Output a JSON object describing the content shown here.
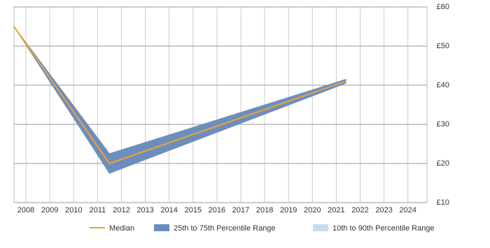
{
  "chart_data": {
    "type": "band-line",
    "x": [
      2007.5,
      2011.5,
      2021.4
    ],
    "series": [
      {
        "name": "Median",
        "color": "#f0a030",
        "values": [
          55,
          20,
          41
        ]
      },
      {
        "name": "25th to 75th Percentile Range",
        "color": "#6b8fbd",
        "low": [
          55,
          17.5,
          40.5
        ],
        "high": [
          55,
          22.5,
          41.5
        ]
      },
      {
        "name": "10th to 90th Percentile Range",
        "color": "#c9dcef"
      }
    ],
    "xlim": [
      2007.5,
      2024.8
    ],
    "xticks": [
      2008,
      2009,
      2010,
      2011,
      2012,
      2013,
      2014,
      2015,
      2016,
      2017,
      2018,
      2019,
      2020,
      2021,
      2022,
      2023,
      2024
    ],
    "ylim": [
      10,
      60
    ],
    "yticks": [
      {
        "value": 10,
        "label": "£10"
      },
      {
        "value": 20,
        "label": "£20"
      },
      {
        "value": 30,
        "label": "£30"
      },
      {
        "value": 40,
        "label": "£40"
      },
      {
        "value": 50,
        "label": "£50"
      },
      {
        "value": 60,
        "label": "£60"
      }
    ],
    "grid": true
  }
}
